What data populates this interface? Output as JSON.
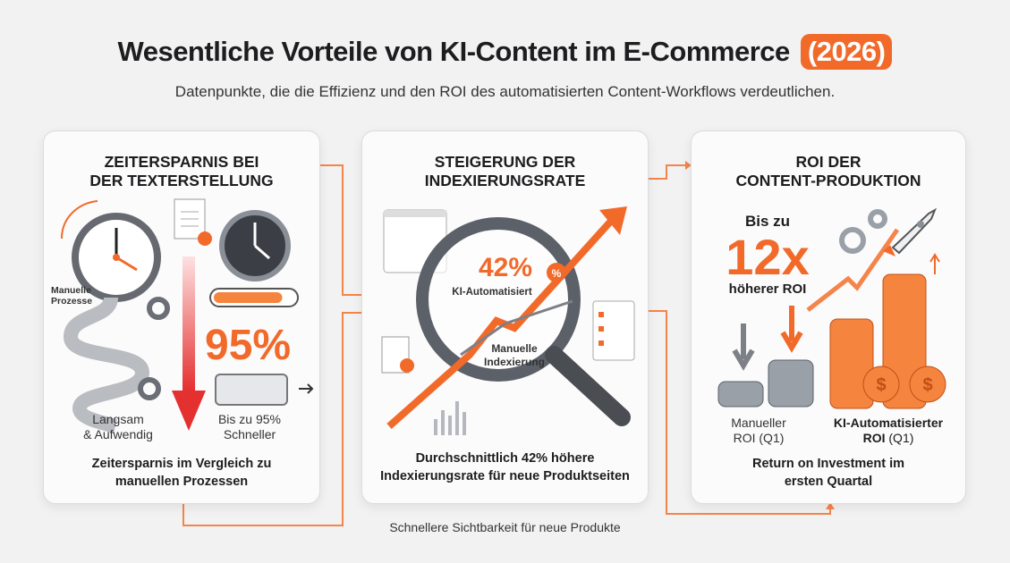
{
  "header": {
    "title": "Wesentliche Vorteile von KI-Content im E-Commerce",
    "title_year": "(2026)",
    "subtitle": "Datenpunkte, die die Effizienz und den ROI des automatisierten Content-Workflows verdeutlichen."
  },
  "cards": [
    {
      "title_line1": "ZEITERSPARNIS BEI",
      "title_line2": "DER TEXTERSTELLUNG",
      "process_label_1": "Manuelle",
      "process_label_2": "Prozesse",
      "big_value": "95%",
      "progress": 0.85,
      "left_label_1": "Langsam",
      "left_label_2": "& Aufwendig",
      "right_label_1": "Bis zu 95%",
      "right_label_2": "Schneller",
      "footer_1": "Zeitersparnis im Vergleich zu",
      "footer_2": "manuellen Prozessen"
    },
    {
      "title_line1": "STEIGERUNG DER",
      "title_line2": "INDEXIERUNGSRATE",
      "big_value": "42%",
      "ai_label": "KI-Automatisiert",
      "manual_label_1": "Manuelle",
      "manual_label_2": "Indexierung",
      "badge": "%",
      "footer_1": "Durchschnittlich 42% höhere",
      "footer_2": "Indexierungsrate für neue Produktseiten"
    },
    {
      "title_line1": "ROI DER",
      "title_line2": "CONTENT-PRODUKTION",
      "pre": "Bis zu",
      "big_value": "12x",
      "post": "höherer ROI",
      "coin_symbol": "$",
      "manual_label_1": "Manueller",
      "manual_label_2": "ROI (Q1)",
      "ai_label_1": "KI-Automatisierter",
      "ai_label_2_bold": "ROI",
      "ai_label_2_rest": " (Q1)",
      "footer_1": "Return on Investment im",
      "footer_2": "ersten Quartal"
    }
  ],
  "caption": "Schnellere Sichtbarkeit für neue Produkte",
  "colors": {
    "accent": "#f26a2a",
    "background": "#f2f2f3",
    "text": "#1d1d1f",
    "gray": "#8a8f97"
  }
}
